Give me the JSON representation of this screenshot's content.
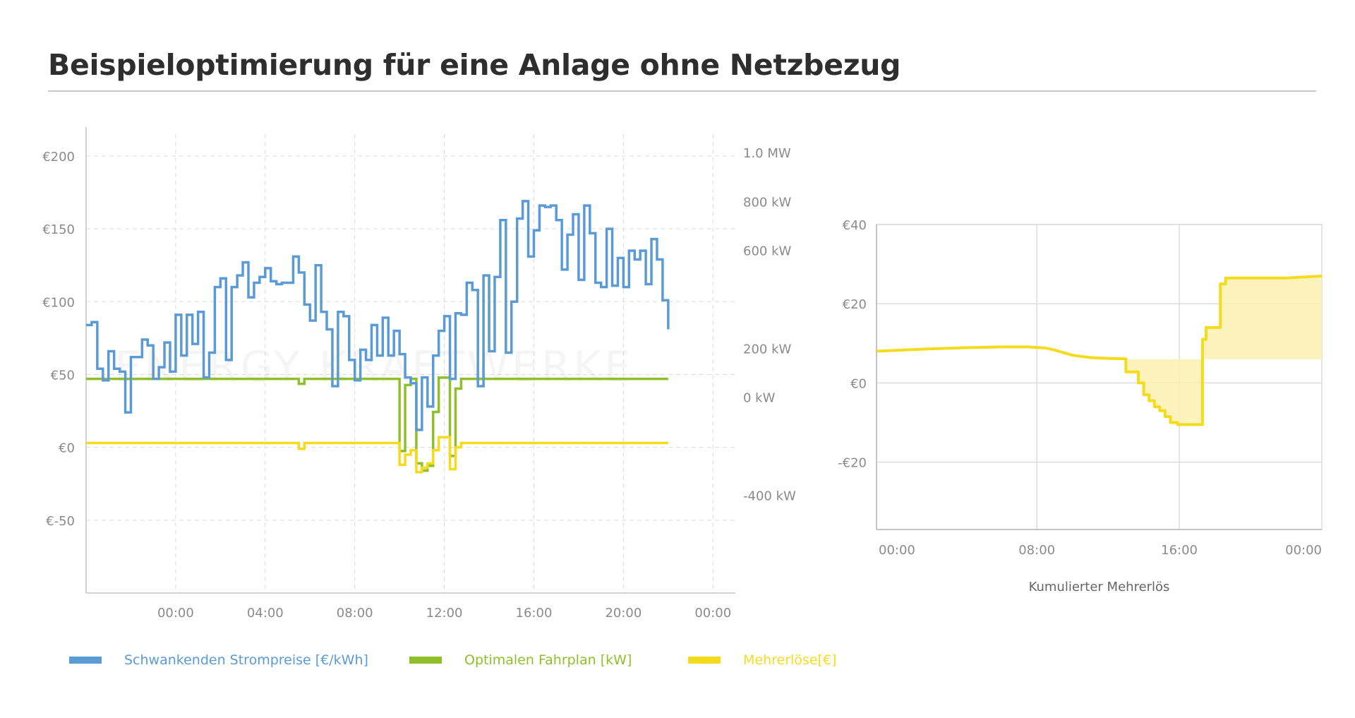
{
  "title": "Beispieloptimierung für eine Anlage ohne Netzbezug",
  "watermark": "ENERGY KRAFTWERKE",
  "colors": {
    "price": "#5b9bd5",
    "schedule": "#8fbf2b",
    "revenue": "#f4dc1c",
    "fill": "#fbf0b0",
    "grid": "#dcdcdc",
    "axis": "#c4c4c4",
    "text": "#8a8a8a"
  },
  "legend": [
    {
      "label": "Schwankenden Strompreise [€/kWh]",
      "color": "#5b9bd5"
    },
    {
      "label": "Optimalen Fahrplan [kW]",
      "color": "#8fbf2b"
    },
    {
      "label": "Mehrerlöse[€]",
      "color": "#f4dc1c"
    }
  ],
  "chart_data": [
    {
      "type": "line",
      "step": true,
      "title": "",
      "x_tick_labels": [
        "00:00",
        "04:00",
        "08:00",
        "12:00",
        "16:00",
        "20:00",
        "00:00"
      ],
      "x_ticks_hours": [
        4,
        8,
        12,
        16,
        20,
        24,
        28
      ],
      "xlim_hours": [
        0,
        29
      ],
      "left_axis": {
        "ylim": [
          -100,
          215
        ],
        "ticks": [
          200,
          150,
          100,
          50,
          0,
          -50
        ],
        "tick_labels": [
          "€200",
          "€150",
          "€100",
          "€50",
          "€0",
          "€-50"
        ]
      },
      "right_axis": {
        "ylim": [
          -800,
          1075
        ],
        "ticks": [
          1000,
          800,
          600,
          400,
          200,
          0,
          -400
        ],
        "tick_labels": [
          "1.0 MW",
          "800 kW",
          "600 kW",
          "",
          "200 kW",
          "0 kW",
          "-400 kW"
        ]
      },
      "series": [
        {
          "name": "Schwankenden Strompreise [€/kWh]",
          "axis": "left",
          "x_start": 0,
          "step_hours": 0.25,
          "values": [
            84,
            86,
            54,
            46,
            66,
            54,
            52,
            24,
            62,
            62,
            74,
            70,
            47,
            55,
            72,
            52,
            91,
            63,
            91,
            71,
            93,
            48,
            65,
            110,
            116,
            60,
            110,
            118,
            127,
            103,
            113,
            117,
            123,
            114,
            112,
            113,
            113,
            131,
            120,
            98,
            87,
            125,
            93,
            81,
            42,
            93,
            90,
            60,
            46,
            67,
            60,
            84,
            63,
            89,
            63,
            80,
            64,
            48,
            44,
            12,
            48,
            28,
            63,
            80,
            90,
            47,
            92,
            91,
            113,
            108,
            42,
            118,
            66,
            117,
            156,
            65,
            100,
            157,
            169,
            131,
            149,
            166,
            165,
            166,
            156,
            122,
            146,
            160,
            115,
            166,
            147,
            113,
            110,
            150,
            111,
            130,
            110,
            135,
            129,
            135,
            112,
            143,
            129,
            101,
            81
          ]
        },
        {
          "name": "Optimalen Fahrplan [kW]",
          "axis": "right",
          "x_start": 0,
          "step_hours": 0.25,
          "values": [
            75,
            75,
            75,
            75,
            75,
            75,
            75,
            75,
            75,
            75,
            75,
            75,
            75,
            75,
            75,
            75,
            75,
            75,
            75,
            75,
            75,
            75,
            75,
            75,
            75,
            75,
            75,
            75,
            75,
            75,
            75,
            75,
            75,
            75,
            75,
            75,
            75,
            75,
            55,
            75,
            75,
            75,
            75,
            75,
            75,
            75,
            75,
            75,
            75,
            75,
            75,
            75,
            75,
            75,
            75,
            75,
            -220,
            50,
            75,
            -270,
            -300,
            -280,
            -60,
            80,
            80,
            -240,
            35,
            75,
            75,
            75,
            75,
            75,
            75,
            75,
            75,
            75,
            75,
            75,
            75,
            75,
            75,
            75,
            75,
            75,
            75,
            75,
            75,
            75,
            75,
            75,
            75,
            75,
            75,
            75,
            75,
            75,
            75,
            75,
            75,
            75,
            75,
            75,
            75,
            75,
            75
          ]
        },
        {
          "name": "Mehrerlöse[€]",
          "axis": "left",
          "x_start": 0,
          "step_hours": 0.25,
          "values": [
            3,
            3,
            3,
            3,
            3,
            3,
            3,
            3,
            3,
            3,
            3,
            3,
            3,
            3,
            3,
            3,
            3,
            3,
            3,
            3,
            3,
            3,
            3,
            3,
            3,
            3,
            3,
            3,
            3,
            3,
            3,
            3,
            3,
            3,
            3,
            3,
            3,
            3,
            -1,
            3,
            3,
            3,
            3,
            3,
            3,
            3,
            3,
            3,
            3,
            3,
            3,
            3,
            3,
            3,
            3,
            3,
            -12,
            -5,
            -2,
            -17,
            -14,
            -11,
            -2,
            7,
            7,
            -15,
            0,
            3,
            3,
            3,
            3,
            3,
            3,
            3,
            3,
            3,
            3,
            3,
            3,
            3,
            3,
            3,
            3,
            3,
            3,
            3,
            3,
            3,
            3,
            3,
            3,
            3,
            3,
            3,
            3,
            3,
            3,
            3,
            3,
            3,
            3,
            3,
            3,
            3,
            3
          ]
        }
      ]
    },
    {
      "type": "area",
      "title": "Kumulierter Mehrerlös",
      "x_tick_labels": [
        "00:00",
        "08:00",
        "16:00",
        "00:00"
      ],
      "x_ticks_hours": [
        0,
        8,
        16,
        24
      ],
      "xlim_hours": [
        -1,
        24
      ],
      "ylim": [
        -37,
        40
      ],
      "y_ticks": [
        40,
        20,
        0,
        -20
      ],
      "y_tick_labels": [
        "€40",
        "€20",
        "€0",
        "-€20"
      ],
      "baseline": 6,
      "series": [
        {
          "name": "Kumulierter Mehrerlös",
          "x": [
            -1,
            0,
            2,
            4,
            6,
            7.5,
            8.5,
            9,
            10,
            11,
            12,
            13,
            13,
            13.7,
            13.7,
            14,
            14,
            14.3,
            14.3,
            14.6,
            14.6,
            14.9,
            14.9,
            15.2,
            15.2,
            15.5,
            15.5,
            15.9,
            15.9,
            17.3,
            17.3,
            17.5,
            17.5,
            18.3,
            18.3,
            18.6,
            18.6,
            20,
            22,
            24
          ],
          "values": [
            8,
            8.2,
            8.6,
            8.9,
            9.1,
            9.1,
            8.8,
            8.3,
            7.0,
            6.4,
            6.2,
            6.1,
            2.8,
            2.8,
            0,
            0,
            -3.0,
            -3.0,
            -4.5,
            -4.5,
            -6,
            -6,
            -7,
            -7,
            -8.5,
            -8.5,
            -10,
            -10,
            -10.5,
            -10.5,
            11,
            11,
            14,
            14,
            25,
            25,
            26.5,
            26.5,
            26.5,
            27
          ]
        }
      ]
    }
  ]
}
